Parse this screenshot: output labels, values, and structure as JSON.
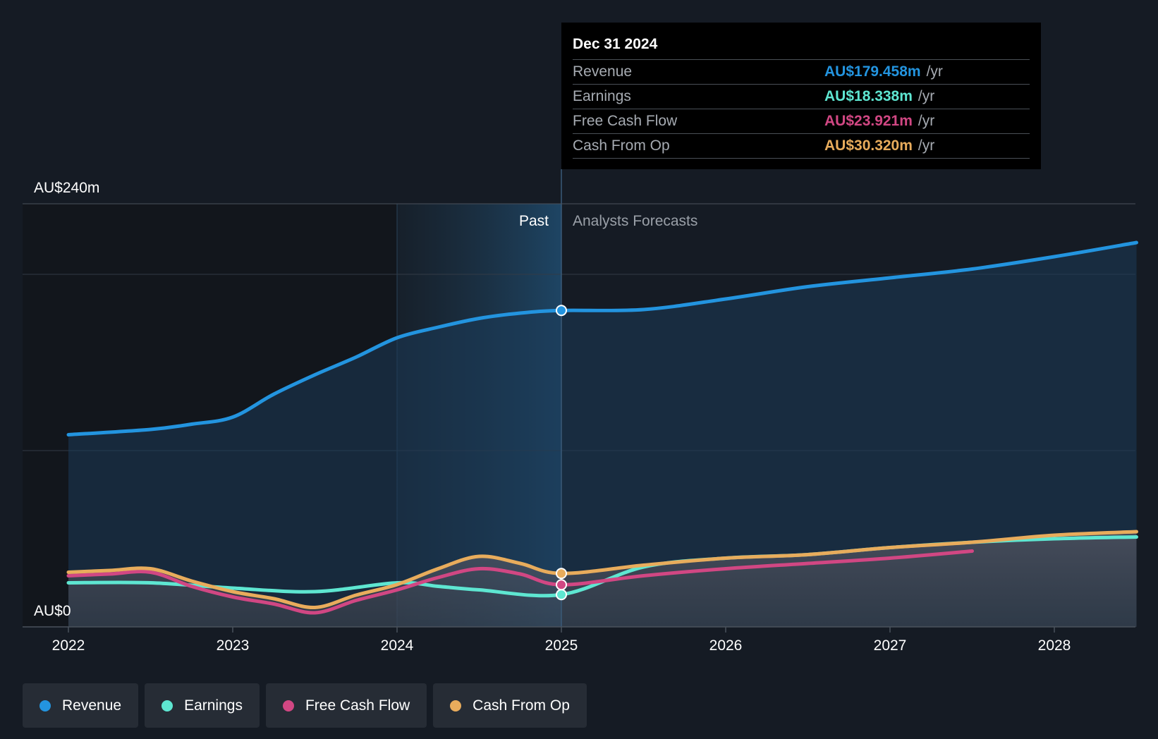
{
  "chart_data": {
    "type": "line",
    "y_axis": {
      "top_label": "AU$240m",
      "bottom_label": "AU$0",
      "ylim": [
        0,
        240
      ],
      "unit": "AU$m"
    },
    "x_ticks": [
      "2022",
      "2023",
      "2024",
      "2025",
      "2026",
      "2027",
      "2028"
    ],
    "xlim": [
      2022.0,
      2028.5
    ],
    "past_cutoff": 2025.0,
    "zone_labels": {
      "past": "Past",
      "forecast": "Analysts Forecasts"
    },
    "series": [
      {
        "name": "Revenue",
        "color": "#2394df",
        "points": [
          [
            2022.0,
            109
          ],
          [
            2022.5,
            112
          ],
          [
            2022.75,
            115
          ],
          [
            2023.0,
            119
          ],
          [
            2023.25,
            132
          ],
          [
            2023.5,
            143
          ],
          [
            2023.75,
            153
          ],
          [
            2024.0,
            164
          ],
          [
            2024.25,
            170
          ],
          [
            2024.5,
            175
          ],
          [
            2024.75,
            178
          ],
          [
            2025.0,
            179.5
          ],
          [
            2025.5,
            180
          ],
          [
            2026.0,
            186
          ],
          [
            2026.5,
            193
          ],
          [
            2027.0,
            198
          ],
          [
            2027.5,
            203
          ],
          [
            2028.0,
            210
          ],
          [
            2028.5,
            218
          ]
        ]
      },
      {
        "name": "Earnings",
        "color": "#5ee6d1",
        "points": [
          [
            2022.0,
            25
          ],
          [
            2022.5,
            25
          ],
          [
            2023.0,
            22
          ],
          [
            2023.5,
            20
          ],
          [
            2024.0,
            25
          ],
          [
            2024.25,
            23
          ],
          [
            2024.5,
            21
          ],
          [
            2025.0,
            18.3
          ],
          [
            2025.5,
            34
          ],
          [
            2026.0,
            39
          ],
          [
            2026.5,
            41
          ],
          [
            2027.0,
            45
          ],
          [
            2027.5,
            48
          ],
          [
            2028.0,
            50
          ],
          [
            2028.5,
            51
          ]
        ]
      },
      {
        "name": "Free Cash Flow",
        "color": "#d14783",
        "points": [
          [
            2022.0,
            29
          ],
          [
            2022.25,
            30
          ],
          [
            2022.5,
            31
          ],
          [
            2022.75,
            23
          ],
          [
            2023.0,
            17
          ],
          [
            2023.25,
            13
          ],
          [
            2023.5,
            8
          ],
          [
            2023.75,
            15
          ],
          [
            2024.0,
            21
          ],
          [
            2024.25,
            28
          ],
          [
            2024.5,
            33
          ],
          [
            2024.75,
            30
          ],
          [
            2025.0,
            23.9
          ],
          [
            2025.5,
            29
          ],
          [
            2026.0,
            33
          ],
          [
            2026.5,
            36
          ],
          [
            2027.0,
            39
          ],
          [
            2027.5,
            43
          ]
        ]
      },
      {
        "name": "Cash From Op",
        "color": "#e8ac5c",
        "points": [
          [
            2022.0,
            31
          ],
          [
            2022.25,
            32
          ],
          [
            2022.5,
            33
          ],
          [
            2022.75,
            26
          ],
          [
            2023.0,
            20
          ],
          [
            2023.25,
            16
          ],
          [
            2023.5,
            11
          ],
          [
            2023.75,
            18
          ],
          [
            2024.0,
            24
          ],
          [
            2024.25,
            33
          ],
          [
            2024.5,
            40
          ],
          [
            2024.75,
            36
          ],
          [
            2025.0,
            30.3
          ],
          [
            2025.5,
            35
          ],
          [
            2026.0,
            39
          ],
          [
            2026.5,
            41
          ],
          [
            2027.0,
            45
          ],
          [
            2027.5,
            48
          ],
          [
            2028.0,
            52
          ],
          [
            2028.5,
            54
          ]
        ]
      }
    ]
  },
  "tooltip": {
    "date": "Dec 31 2024",
    "unit": "/yr",
    "rows": [
      {
        "label": "Revenue",
        "value": "AU$179.458m",
        "color": "#2394df"
      },
      {
        "label": "Earnings",
        "value": "AU$18.338m",
        "color": "#5ee6d1"
      },
      {
        "label": "Free Cash Flow",
        "value": "AU$23.921m",
        "color": "#d14783"
      },
      {
        "label": "Cash From Op",
        "value": "AU$30.320m",
        "color": "#e8ac5c"
      }
    ]
  },
  "legend": [
    {
      "label": "Revenue",
      "color": "#2394df"
    },
    {
      "label": "Earnings",
      "color": "#5ee6d1"
    },
    {
      "label": "Free Cash Flow",
      "color": "#d14783"
    },
    {
      "label": "Cash From Op",
      "color": "#e8ac5c"
    }
  ]
}
